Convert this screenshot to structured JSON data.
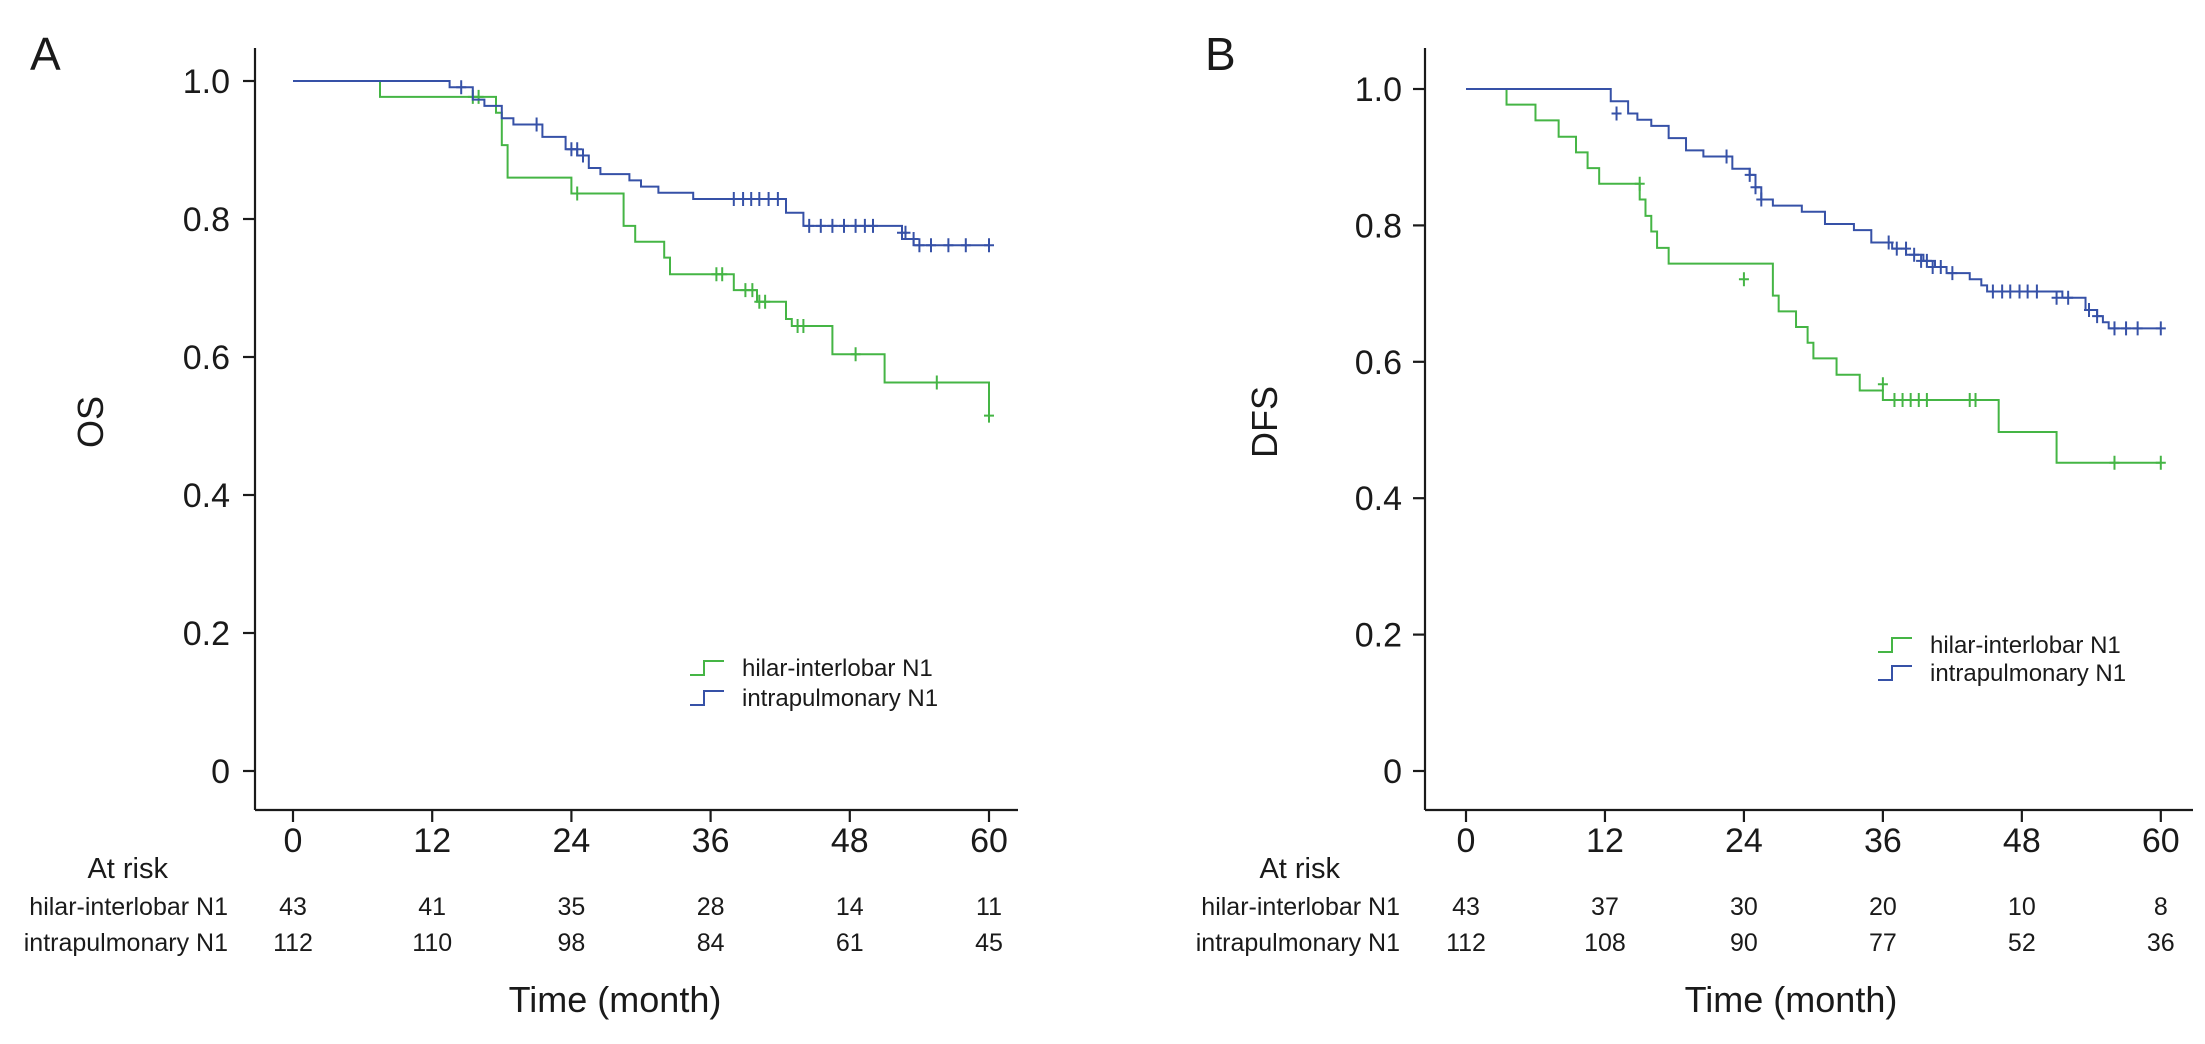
{
  "chart_data": [
    {
      "type": "line",
      "panel": "A",
      "ylabel": "OS",
      "xlabel": "Time (month)",
      "x_ticks": [
        "0",
        "12",
        "24",
        "36",
        "48",
        "60"
      ],
      "y_ticks": [
        "0",
        "0.2",
        "0.4",
        "0.6",
        "0.8",
        "1.0"
      ],
      "xlim": [
        0,
        60
      ],
      "ylim": [
        0,
        1.0
      ],
      "legend_position": "bottom-right",
      "series": [
        {
          "name": "hilar-interlobar N1",
          "color": "#45b545",
          "steps": [
            [
              0,
              1.0
            ],
            [
              7.5,
              0.977
            ],
            [
              17.5,
              0.954
            ],
            [
              18,
              0.907
            ],
            [
              18.5,
              0.86
            ],
            [
              24,
              0.837
            ],
            [
              28.5,
              0.79
            ],
            [
              29.5,
              0.767
            ],
            [
              32,
              0.744
            ],
            [
              32.5,
              0.72
            ],
            [
              36,
              0.72
            ],
            [
              38,
              0.697
            ],
            [
              40,
              0.68
            ],
            [
              40.5,
              0.68
            ],
            [
              42.5,
              0.655
            ],
            [
              43,
              0.645
            ],
            [
              46.5,
              0.604
            ],
            [
              51,
              0.563
            ],
            [
              60,
              0.515
            ]
          ],
          "censored": [
            [
              15.5,
              0.977
            ],
            [
              16,
              0.977
            ],
            [
              24.5,
              0.837
            ],
            [
              36.5,
              0.72
            ],
            [
              37,
              0.72
            ],
            [
              39,
              0.697
            ],
            [
              39.6,
              0.697
            ],
            [
              40.2,
              0.68
            ],
            [
              40.7,
              0.68
            ],
            [
              43.5,
              0.645
            ],
            [
              44,
              0.645
            ],
            [
              48.5,
              0.604
            ],
            [
              55.5,
              0.563
            ],
            [
              60,
              0.515
            ]
          ]
        },
        {
          "name": "intrapulmonary N1",
          "color": "#3651a7",
          "steps": [
            [
              0,
              1.0
            ],
            [
              13.5,
              0.991
            ],
            [
              15.5,
              0.973
            ],
            [
              16.5,
              0.964
            ],
            [
              18,
              0.946
            ],
            [
              19,
              0.937
            ],
            [
              21.5,
              0.919
            ],
            [
              23.5,
              0.901
            ],
            [
              24.5,
              0.892
            ],
            [
              25.5,
              0.874
            ],
            [
              26.5,
              0.865
            ],
            [
              29,
              0.856
            ],
            [
              30,
              0.847
            ],
            [
              31.5,
              0.838
            ],
            [
              34.5,
              0.829
            ],
            [
              42.5,
              0.809
            ],
            [
              44,
              0.79
            ],
            [
              52.5,
              0.771
            ],
            [
              53.5,
              0.762
            ]
          ],
          "censored": [
            [
              14.5,
              0.991
            ],
            [
              21,
              0.937
            ],
            [
              24,
              0.901
            ],
            [
              24.5,
              0.901
            ],
            [
              25,
              0.892
            ],
            [
              38,
              0.829
            ],
            [
              38.8,
              0.829
            ],
            [
              39.5,
              0.829
            ],
            [
              40.2,
              0.829
            ],
            [
              41,
              0.829
            ],
            [
              41.8,
              0.829
            ],
            [
              44.5,
              0.79
            ],
            [
              45.5,
              0.79
            ],
            [
              46.5,
              0.79
            ],
            [
              47.5,
              0.79
            ],
            [
              48.5,
              0.79
            ],
            [
              49.3,
              0.79
            ],
            [
              50,
              0.79
            ],
            [
              52.5,
              0.78
            ],
            [
              52.8,
              0.78
            ],
            [
              53.5,
              0.771
            ],
            [
              54,
              0.762
            ],
            [
              55,
              0.762
            ],
            [
              56.5,
              0.762
            ],
            [
              58,
              0.762
            ],
            [
              60,
              0.762
            ]
          ]
        }
      ],
      "at_risk": {
        "header": "At risk",
        "rows": [
          {
            "label": "hilar-interlobar N1",
            "values": [
              "43",
              "41",
              "35",
              "28",
              "14",
              "11"
            ]
          },
          {
            "label": "intrapulmonary N1",
            "values": [
              "112",
              "110",
              "98",
              "84",
              "61",
              "45"
            ]
          }
        ]
      }
    },
    {
      "type": "line",
      "panel": "B",
      "ylabel": "DFS",
      "xlabel": "Time (month)",
      "x_ticks": [
        "0",
        "12",
        "24",
        "36",
        "48",
        "60"
      ],
      "y_ticks": [
        "0",
        "0.2",
        "0.4",
        "0.6",
        "0.8",
        "1.0"
      ],
      "xlim": [
        0,
        60
      ],
      "ylim": [
        0,
        1.0
      ],
      "legend_position": "bottom-right",
      "series": [
        {
          "name": "hilar-interlobar N1",
          "color": "#45b545",
          "steps": [
            [
              0,
              1.0
            ],
            [
              3.5,
              0.977
            ],
            [
              6,
              0.954
            ],
            [
              8,
              0.93
            ],
            [
              9.5,
              0.907
            ],
            [
              10.5,
              0.884
            ],
            [
              11.5,
              0.861
            ],
            [
              15,
              0.838
            ],
            [
              15.5,
              0.814
            ],
            [
              16,
              0.791
            ],
            [
              16.5,
              0.767
            ],
            [
              17.5,
              0.744
            ],
            [
              19,
              0.744
            ],
            [
              26.5,
              0.697
            ],
            [
              27,
              0.674
            ],
            [
              28.5,
              0.651
            ],
            [
              29.5,
              0.628
            ],
            [
              30,
              0.605
            ],
            [
              32,
              0.581
            ],
            [
              34,
              0.558
            ],
            [
              36,
              0.544
            ],
            [
              46,
              0.497
            ],
            [
              51,
              0.452
            ]
          ],
          "censored": [
            [
              15,
              0.861
            ],
            [
              24,
              0.721
            ],
            [
              36,
              0.567
            ],
            [
              37,
              0.544
            ],
            [
              37.7,
              0.544
            ],
            [
              38.4,
              0.544
            ],
            [
              39.1,
              0.544
            ],
            [
              39.8,
              0.544
            ],
            [
              43.5,
              0.544
            ],
            [
              44,
              0.544
            ],
            [
              56,
              0.452
            ],
            [
              60,
              0.452
            ]
          ]
        },
        {
          "name": "intrapulmonary N1",
          "color": "#3651a7",
          "steps": [
            [
              0,
              1.0
            ],
            [
              12.5,
              0.982
            ],
            [
              14,
              0.964
            ],
            [
              14.8,
              0.955
            ],
            [
              16,
              0.946
            ],
            [
              17.5,
              0.928
            ],
            [
              19,
              0.91
            ],
            [
              20.5,
              0.901
            ],
            [
              23,
              0.883
            ],
            [
              24.5,
              0.874
            ],
            [
              25,
              0.856
            ],
            [
              25.5,
              0.838
            ],
            [
              26.5,
              0.829
            ],
            [
              29,
              0.82
            ],
            [
              31,
              0.802
            ],
            [
              33.5,
              0.793
            ],
            [
              35,
              0.775
            ],
            [
              36.8,
              0.766
            ],
            [
              38,
              0.757
            ],
            [
              39.5,
              0.748
            ],
            [
              40.5,
              0.739
            ],
            [
              41.5,
              0.73
            ],
            [
              43.5,
              0.721
            ],
            [
              44.5,
              0.712
            ],
            [
              45,
              0.703
            ],
            [
              51.5,
              0.694
            ],
            [
              53.5,
              0.676
            ],
            [
              54.5,
              0.667
            ],
            [
              55,
              0.658
            ],
            [
              55.5,
              0.649
            ]
          ],
          "censored": [
            [
              13,
              0.964
            ],
            [
              22.5,
              0.901
            ],
            [
              24.5,
              0.874
            ],
            [
              25,
              0.856
            ],
            [
              25.5,
              0.838
            ],
            [
              36.5,
              0.775
            ],
            [
              37.2,
              0.766
            ],
            [
              38,
              0.766
            ],
            [
              38.7,
              0.757
            ],
            [
              39.3,
              0.748
            ],
            [
              39.8,
              0.748
            ],
            [
              40.3,
              0.739
            ],
            [
              41,
              0.739
            ],
            [
              42,
              0.73
            ],
            [
              45.5,
              0.703
            ],
            [
              46.3,
              0.703
            ],
            [
              47,
              0.703
            ],
            [
              47.8,
              0.703
            ],
            [
              48.5,
              0.703
            ],
            [
              49.3,
              0.703
            ],
            [
              51,
              0.694
            ],
            [
              52,
              0.694
            ],
            [
              53.8,
              0.676
            ],
            [
              54.5,
              0.667
            ],
            [
              56,
              0.649
            ],
            [
              57,
              0.649
            ],
            [
              58,
              0.649
            ],
            [
              60,
              0.649
            ]
          ]
        }
      ],
      "at_risk": {
        "header": "At risk",
        "rows": [
          {
            "label": "hilar-interlobar N1",
            "values": [
              "43",
              "37",
              "30",
              "20",
              "10",
              "8"
            ]
          },
          {
            "label": "intrapulmonary N1",
            "values": [
              "112",
              "108",
              "90",
              "77",
              "52",
              "36"
            ]
          }
        ]
      }
    }
  ]
}
